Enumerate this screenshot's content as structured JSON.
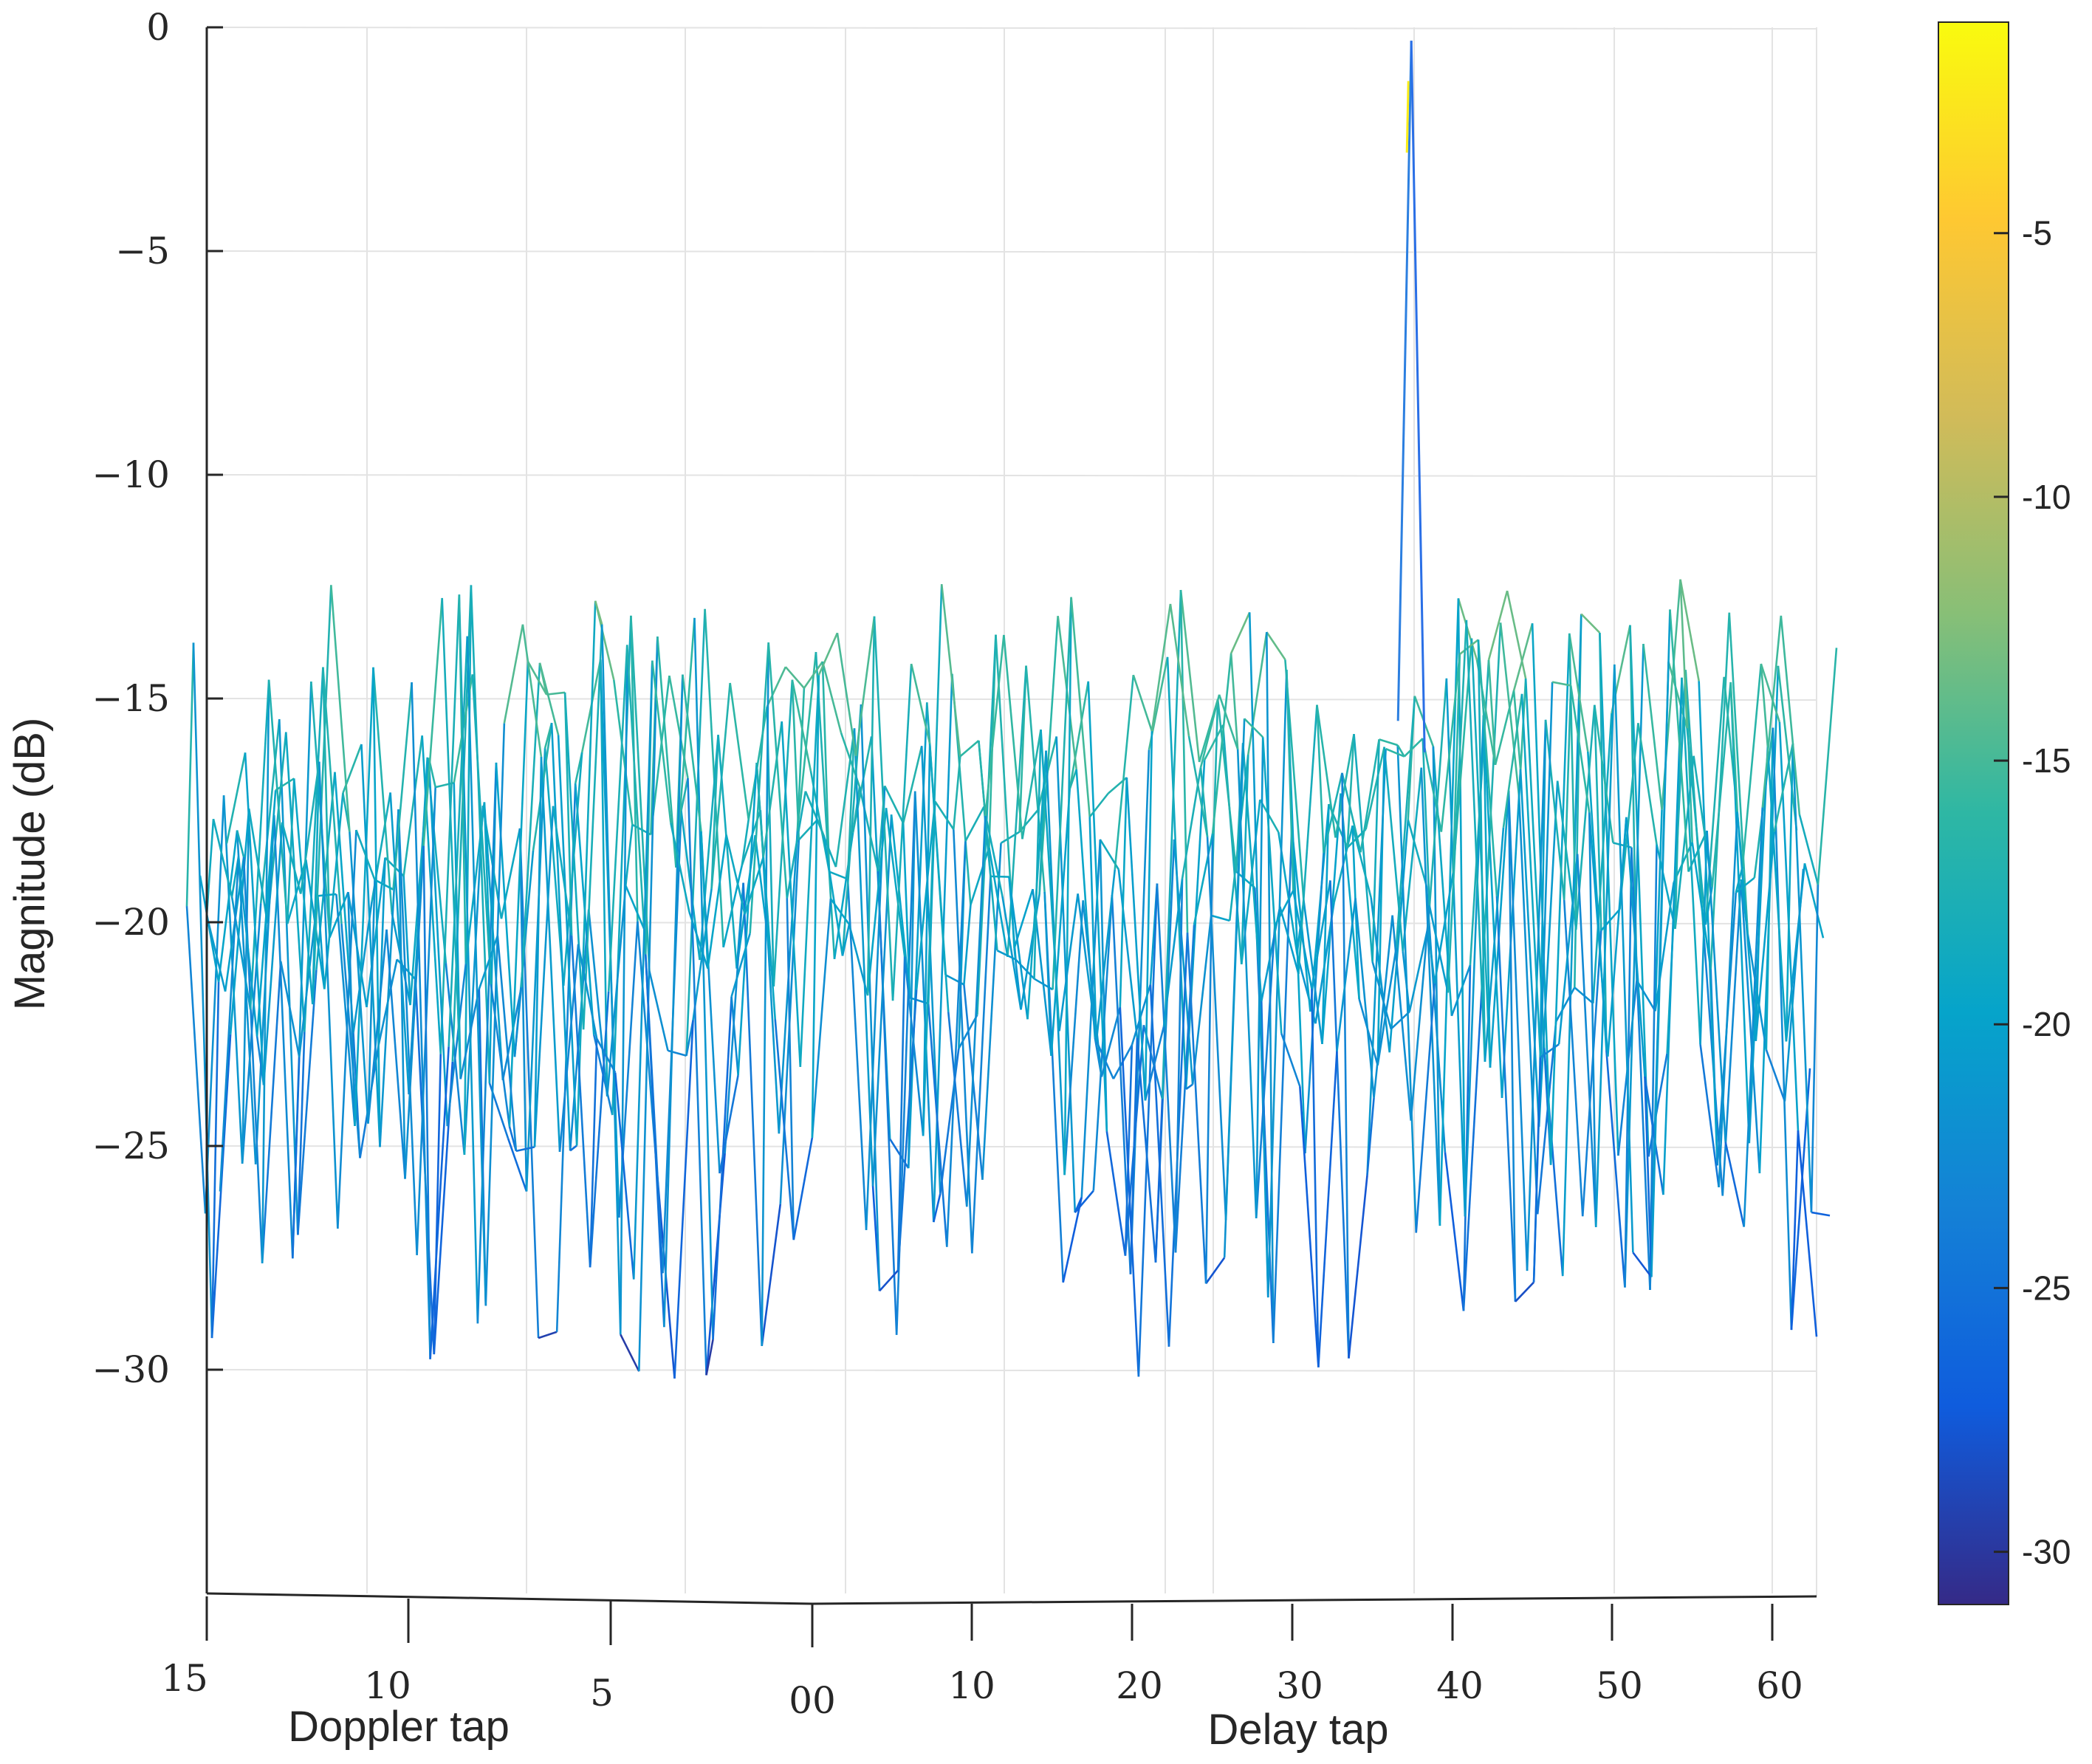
{
  "chart_data": {
    "type": "mesh",
    "title": "",
    "xlabel_left": "Doppler tap",
    "xlabel_right": "Delay tap",
    "ylabel": "Magnitude (dB)",
    "zlim": [
      -35,
      0
    ],
    "z_ticks": [
      0,
      -5,
      -10,
      -15,
      -20,
      -25,
      -30
    ],
    "z_tick_labels": [
      "0",
      "−5",
      "−10",
      "−15",
      "−20",
      "−25",
      "−30"
    ],
    "doppler_tick_labels": [
      "15",
      "10",
      "5",
      "00"
    ],
    "delay_tick_labels": [
      "10",
      "20",
      "30",
      "40",
      "50",
      "60"
    ],
    "grid": true,
    "colormap": "parula",
    "colorbar": {
      "range": [
        -31,
        -1
      ],
      "ticks": [
        -5,
        -10,
        -15,
        -20,
        -25,
        -30
      ],
      "tick_labels": [
        "-5",
        "-10",
        "-15",
        "-20",
        "-25",
        "-30"
      ],
      "colors": [
        "#352a87",
        "#0f5cdd",
        "#1481d6",
        "#06a4ca",
        "#2eb7a4",
        "#87bf77",
        "#d1bb59",
        "#fec832",
        "#f9fb0e"
      ]
    },
    "peak": {
      "delay_tap": 33,
      "doppler_tap": 0,
      "value_db": -0.3
    },
    "noise_floor_db": [
      -30.3,
      -12.3
    ]
  }
}
